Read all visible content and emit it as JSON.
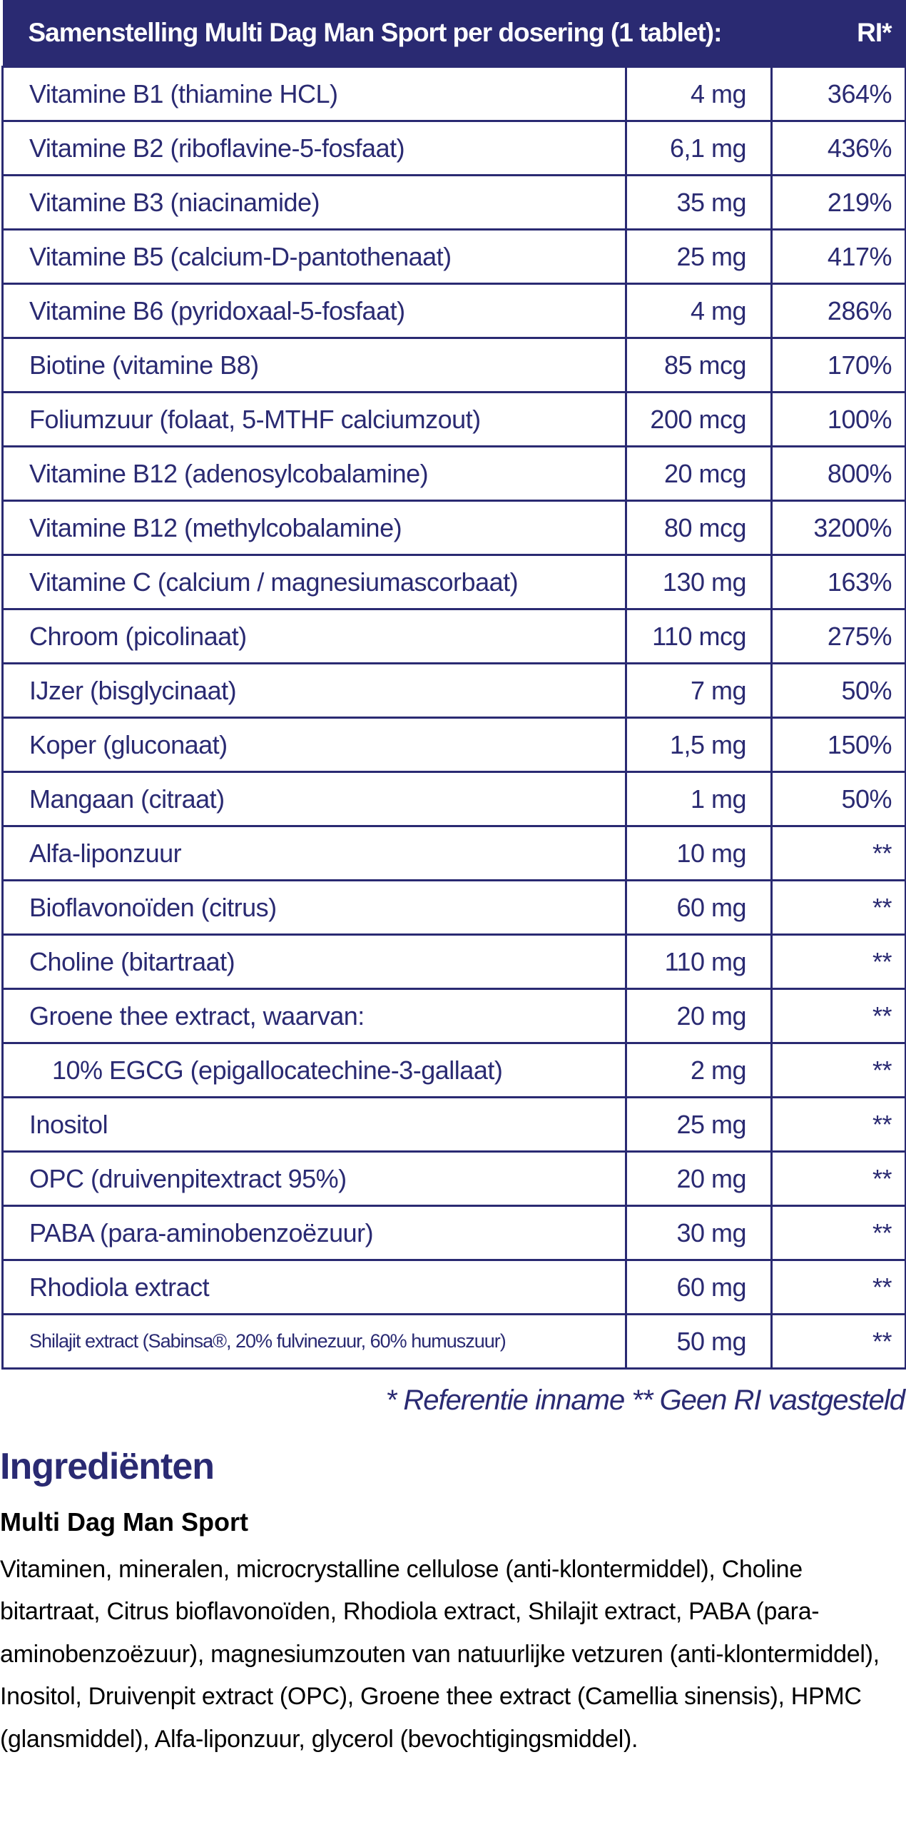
{
  "table": {
    "header": {
      "title": "Samenstelling Multi Dag Man Sport per dosering (1 tablet):",
      "ri": "RI*"
    },
    "rows": [
      {
        "name": "Vitamine B1 (thiamine HCL)",
        "amount": "4 mg",
        "ri": "364%"
      },
      {
        "name": "Vitamine B2 (riboflavine-5-fosfaat)",
        "amount": "6,1 mg",
        "ri": "436%"
      },
      {
        "name": "Vitamine B3 (niacinamide)",
        "amount": "35 mg",
        "ri": "219%"
      },
      {
        "name": "Vitamine B5 (calcium-D-pantothenaat)",
        "amount": "25 mg",
        "ri": "417%"
      },
      {
        "name": "Vitamine B6 (pyridoxaal-5-fosfaat)",
        "amount": "4 mg",
        "ri": "286%"
      },
      {
        "name": "Biotine (vitamine B8)",
        "amount": "85 mcg",
        "ri": "170%"
      },
      {
        "name": "Foliumzuur (folaat, 5-MTHF calciumzout)",
        "amount": "200 mcg",
        "ri": "100%"
      },
      {
        "name": "Vitamine B12 (adenosylcobalamine)",
        "amount": "20 mcg",
        "ri": "800%"
      },
      {
        "name": "Vitamine B12 (methylcobalamine)",
        "amount": "80 mcg",
        "ri": "3200%"
      },
      {
        "name": "Vitamine C (calcium / magnesiumascorbaat)",
        "amount": "130 mg",
        "ri": "163%"
      },
      {
        "name": "Chroom (picolinaat)",
        "amount": "110 mcg",
        "ri": "275%"
      },
      {
        "name": "IJzer (bisglycinaat)",
        "amount": "7 mg",
        "ri": "50%"
      },
      {
        "name": "Koper (gluconaat)",
        "amount": "1,5 mg",
        "ri": "150%"
      },
      {
        "name": "Mangaan (citraat)",
        "amount": "1 mg",
        "ri": "50%"
      },
      {
        "name": "Alfa-liponzuur",
        "amount": "10 mg",
        "ri": "**"
      },
      {
        "name": "Bioflavonoïden (citrus)",
        "amount": "60 mg",
        "ri": "**"
      },
      {
        "name": "Choline (bitartraat)",
        "amount": "110 mg",
        "ri": "**"
      },
      {
        "name": "Groene thee extract, waarvan:",
        "amount": "20 mg",
        "ri": "**"
      },
      {
        "name": "10% EGCG (epigallocatechine-3-gallaat)",
        "amount": "2 mg",
        "ri": "**"
      },
      {
        "name": "Inositol",
        "amount": "25 mg",
        "ri": "**"
      },
      {
        "name": "OPC (druivenpitextract 95%)",
        "amount": "20 mg",
        "ri": "**"
      },
      {
        "name": "PABA (para-aminobenzoëzuur)",
        "amount": "30 mg",
        "ri": "**"
      },
      {
        "name": "Rhodiola extract",
        "amount": "60 mg",
        "ri": "**"
      },
      {
        "name": "Shilajit extract (Sabinsa®, 20% fulvinezuur, 60% humuszuur)",
        "amount": "50 mg",
        "ri": "**"
      }
    ]
  },
  "footnote": "* Referentie inname  ** Geen RI vastgesteld",
  "ingredients": {
    "heading": "Ingrediënten",
    "product": "Multi Dag Man Sport",
    "text": "Vitaminen, mineralen, microcrystalline cellulose (anti-klontermiddel), Choline bitartraat, Citrus bioflavonoïden, Rhodiola extract, Shilajit extract, PABA (para-aminobenzoëzuur), magnesiumzouten van natuurlijke vetzuren (anti-klontermiddel), Inositol, Druivenpit extract (OPC), Groene thee extract (Camellia sinensis), HPMC (glansmiddel), Alfa-liponzuur, glycerol (bevochtigingsmiddel)."
  },
  "colors": {
    "accent": "#2a2a72"
  }
}
